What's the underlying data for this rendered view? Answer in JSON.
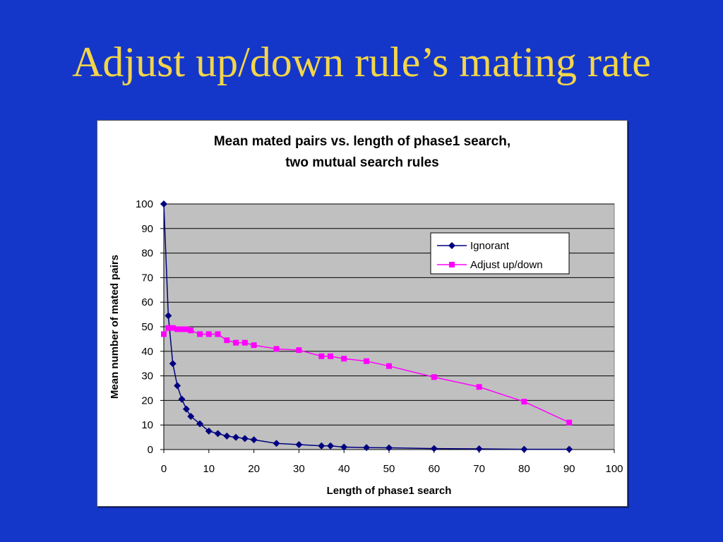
{
  "slide": {
    "title": "Adjust up/down rule’s mating rate"
  },
  "colors": {
    "background": "#1537c9",
    "title": "#f3d54a",
    "plot_area": "#c0c0c0",
    "ignorant": "#000080",
    "adjust": "#ff00ff"
  },
  "chart_data": {
    "type": "line",
    "title_lines": [
      "Mean mated pairs vs. length of phase1 search,",
      "two mutual search rules"
    ],
    "xlabel": "Length of phase1 search",
    "ylabel": "Mean number of mated pairs",
    "xlim": [
      0,
      100
    ],
    "ylim": [
      0,
      100
    ],
    "xticks": [
      0,
      10,
      20,
      30,
      40,
      50,
      60,
      70,
      80,
      90,
      100
    ],
    "yticks": [
      0,
      10,
      20,
      30,
      40,
      50,
      60,
      70,
      80,
      90,
      100
    ],
    "grid": "horizontal",
    "legend_position": "top-right",
    "series": [
      {
        "name": "Ignorant",
        "marker": "diamond",
        "x": [
          0,
          1,
          2,
          3,
          4,
          5,
          6,
          8,
          10,
          12,
          14,
          16,
          18,
          20,
          25,
          30,
          35,
          37,
          40,
          45,
          50,
          60,
          70,
          80,
          90
        ],
        "y": [
          100,
          54.5,
          35,
          26,
          20.5,
          16.5,
          13.5,
          10.5,
          7.5,
          6.5,
          5.5,
          5,
          4.5,
          4,
          2.5,
          2,
          1.5,
          1.5,
          1,
          0.8,
          0.7,
          0.4,
          0.3,
          0.1,
          0.1
        ]
      },
      {
        "name": "Adjust up/down",
        "marker": "square",
        "x": [
          0,
          1,
          2,
          3,
          4,
          5,
          6,
          8,
          10,
          12,
          14,
          16,
          18,
          20,
          25,
          30,
          35,
          37,
          40,
          45,
          50,
          60,
          70,
          80,
          90
        ],
        "y": [
          47,
          49.5,
          49.5,
          49,
          49,
          49,
          48.5,
          47,
          47,
          47,
          44.5,
          43.5,
          43.5,
          42.5,
          41,
          40.5,
          38,
          38,
          37,
          36,
          34,
          29.5,
          25.5,
          19.5,
          11
        ]
      }
    ]
  }
}
